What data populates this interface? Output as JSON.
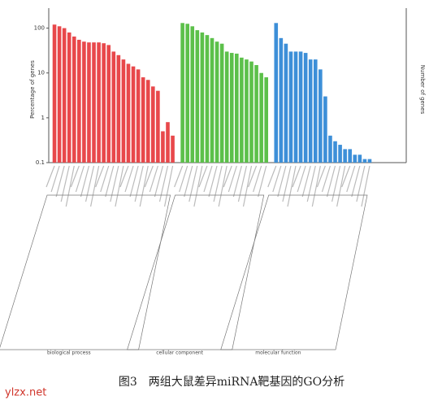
{
  "chart_data": {
    "type": "bar",
    "y_label": "Percentage of genes",
    "y2_label": "Number of genes",
    "log_scale": true,
    "ylim": [
      0.1,
      200
    ],
    "yticks": [
      0.1,
      1,
      10,
      100
    ],
    "groups": [
      {
        "name": "biological process",
        "color": "#e8484b",
        "values": [
          120,
          110,
          100,
          80,
          65,
          55,
          50,
          48,
          48,
          48,
          46,
          42,
          30,
          25,
          20,
          16,
          14,
          12,
          8,
          7,
          5,
          4,
          0.5,
          0.8,
          0.4
        ]
      },
      {
        "name": "cellular component",
        "color": "#5cc04a",
        "values": [
          130,
          125,
          110,
          90,
          80,
          70,
          60,
          50,
          45,
          30,
          28,
          27,
          22,
          20,
          18,
          15,
          10,
          8
        ]
      },
      {
        "name": "molecular function",
        "color": "#3d8fd8",
        "values": [
          130,
          60,
          45,
          30,
          30,
          30,
          28,
          20,
          20,
          12,
          3,
          0.4,
          0.3,
          0.25,
          0.2,
          0.2,
          0.15,
          0.15,
          0.12,
          0.12
        ]
      }
    ]
  },
  "caption": "图3　两组大鼠差异miRNA靶基因的GO分析",
  "watermark": "ylzx.net"
}
